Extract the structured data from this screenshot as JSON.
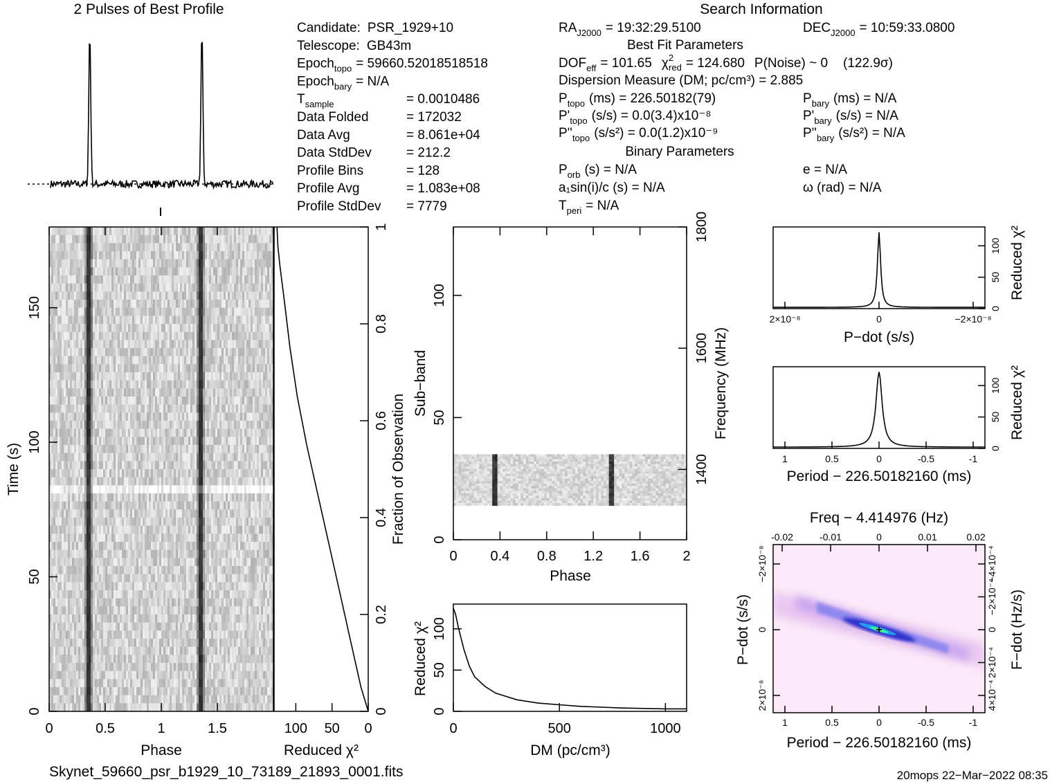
{
  "top_title": "2 Pulses of Best Profile",
  "search_title": "Search Information",
  "filename": "Skynet_59660_psr_b1929_10_73189_21893_0001.fits",
  "footer": "20mops 22−Mar−2022 08:35",
  "info": {
    "left": [
      {
        "k": "Candidate:",
        "v": "PSR_1929+10"
      },
      {
        "k": "Telescope:",
        "v": "GB43m"
      },
      {
        "k": "Epoch",
        "sub": "topo",
        "v": "= 59660.52018518518"
      },
      {
        "k": "Epoch",
        "sub": "bary",
        "v": "= N/A"
      },
      {
        "k": "T",
        "sub": "sample",
        "v": "= 0.0010486"
      },
      {
        "k": "Data Folded",
        "v": "= 172032"
      },
      {
        "k": "Data Avg",
        "v": "= 8.061e+04"
      },
      {
        "k": "Data StdDev",
        "v": "= 212.2"
      },
      {
        "k": "Profile Bins",
        "v": "= 128"
      },
      {
        "k": "Profile Avg",
        "v": "= 1.083e+08"
      },
      {
        "k": "Profile StdDev",
        "v": "= 7779"
      }
    ],
    "ra": "RA",
    "ra_sub": "J2000",
    "ra_val": "= 19:32:29.5100",
    "dec": "DEC",
    "dec_sub": "J2000",
    "dec_val": "= 10:59:33.0800",
    "best_fit_title": "Best Fit Parameters",
    "dof_line": "DOF",
    "dof_sub": "eff",
    "dof_val": "= 101.65",
    "chi_val": "= 124.680",
    "pnoise": "P(Noise) ~ 0",
    "sigma": "(122.9σ)",
    "dm_line": "Dispersion Measure (DM; pc/cm³) = 2.885",
    "ptopo": "(ms) = 226.50182(79)",
    "pbary": "(ms) = N/A",
    "pdtopo": "(s/s) = 0.0(3.4)x10⁻⁸",
    "pdbary": "(s/s) = N/A",
    "pddtopo": "(s/s²) = 0.0(1.2)x10⁻⁹",
    "pddbary": "(s/s²) = N/A",
    "binary_title": "Binary Parameters",
    "porb": "(s) = N/A",
    "ecc": "e = N/A",
    "asini": "a₁sin(i)/c (s) = N/A",
    "omega": "ω (rad) = N/A",
    "tperi": "= N/A"
  },
  "labels": {
    "time_axis": "Time (s)",
    "phase": "Phase",
    "reduced_chi2": "Reduced χ²",
    "fraction_obs": "Fraction of Observation",
    "subband": "Sub−band",
    "frequency": "Frequency (MHz)",
    "dm": "DM (pc/cm³)",
    "pdot": "P−dot (s/s)",
    "period": "Period − 226.50182160 (ms)",
    "freq_top": "Freq − 4.414976 (Hz)",
    "fdot": "F−dot (Hz/s)"
  },
  "chart_data": [
    {
      "type": "line",
      "name": "profile",
      "title": "2 Pulses of Best Profile",
      "xlim": [
        0,
        2
      ],
      "peaks_phase": [
        0.35,
        1.35
      ]
    },
    {
      "type": "heatmap",
      "name": "time-phase",
      "xlabel": "Phase",
      "ylabel": "Time (s)",
      "xlim": [
        0,
        2
      ],
      "ylim": [
        0,
        180
      ],
      "xticks": [
        0,
        0.5,
        1,
        1.5
      ],
      "yticks": [
        0,
        50,
        100,
        150
      ],
      "pulse_phase": [
        0.35,
        1.35
      ]
    },
    {
      "type": "line",
      "name": "reduced-chi2-vs-time",
      "xlabel": "Reduced χ²",
      "ylabel": "Fraction of Observation",
      "xticks": [
        100,
        50,
        0
      ],
      "yticks": [
        0,
        0.2,
        0.4,
        0.6,
        0.8,
        1
      ],
      "points": [
        [
          0,
          0
        ],
        [
          10,
          0.05
        ],
        [
          25,
          0.15
        ],
        [
          40,
          0.25
        ],
        [
          55,
          0.35
        ],
        [
          70,
          0.45
        ],
        [
          85,
          0.55
        ],
        [
          98,
          0.65
        ],
        [
          108,
          0.75
        ],
        [
          116,
          0.85
        ],
        [
          122,
          0.92
        ],
        [
          124.7,
          0.96
        ],
        [
          126,
          1.0
        ]
      ]
    },
    {
      "type": "heatmap",
      "name": "subband-phase",
      "xlabel": "Phase",
      "ylabel": "Sub−band",
      "xlim": [
        0,
        2
      ],
      "ylim": [
        0,
        128
      ],
      "xticks": [
        0,
        0.4,
        0.8,
        1.2,
        1.6,
        2
      ],
      "yticks": [
        0,
        50,
        100
      ],
      "freq_ticks": [
        1400,
        1600,
        1800
      ],
      "data_subbands": [
        14,
        35
      ],
      "pulse_phase": [
        0.35,
        1.35
      ]
    },
    {
      "type": "line",
      "name": "reduced-chi2-vs-dm",
      "xlabel": "DM (pc/cm³)",
      "ylabel": "Reduced χ²",
      "xlim": [
        0,
        1100
      ],
      "ylim": [
        0,
        130
      ],
      "xticks": [
        0,
        500,
        1000
      ],
      "yticks": [
        0,
        50,
        100
      ],
      "points": [
        [
          0,
          125
        ],
        [
          10,
          118
        ],
        [
          25,
          100
        ],
        [
          50,
          75
        ],
        [
          75,
          55
        ],
        [
          100,
          42
        ],
        [
          150,
          30
        ],
        [
          200,
          22
        ],
        [
          300,
          14
        ],
        [
          400,
          10
        ],
        [
          500,
          8
        ],
        [
          600,
          6
        ],
        [
          700,
          5
        ],
        [
          800,
          4
        ],
        [
          900,
          3.5
        ],
        [
          1000,
          3
        ],
        [
          1100,
          3
        ]
      ]
    },
    {
      "type": "line",
      "name": "reduced-chi2-vs-pdot",
      "xlabel": "P−dot (s/s)",
      "ylabel": "Reduced χ²",
      "xtick_labels": [
        "2×10⁻⁸",
        "0",
        "−2×10⁻⁸"
      ],
      "yticks": [
        0,
        50,
        100
      ],
      "peak": 124.7
    },
    {
      "type": "line",
      "name": "reduced-chi2-vs-period",
      "xlabel": "Period − 226.50182160 (ms)",
      "ylabel": "Reduced χ²",
      "xticks": [
        1,
        0.5,
        0,
        -0.5,
        -1
      ],
      "yticks": [
        0,
        50,
        100
      ],
      "peak": 124.7
    },
    {
      "type": "heatmap",
      "name": "period-pdot",
      "xlabel": "Period − 226.50182160 (ms)",
      "ylabel": "P−dot (s/s)",
      "xticks": [
        1,
        0.5,
        0,
        -0.5,
        -1
      ],
      "top_xticks": [
        -0.02,
        -0.01,
        0,
        0.01,
        0.02
      ],
      "left_tick_labels": [
        "−2×10⁻⁸",
        "0",
        "2×10⁻⁸"
      ],
      "right_tick_labels": [
        "−4×10⁻⁴",
        "−2×10⁻⁴",
        "0",
        "2×10⁻⁴",
        "4×10⁻⁴"
      ]
    }
  ]
}
